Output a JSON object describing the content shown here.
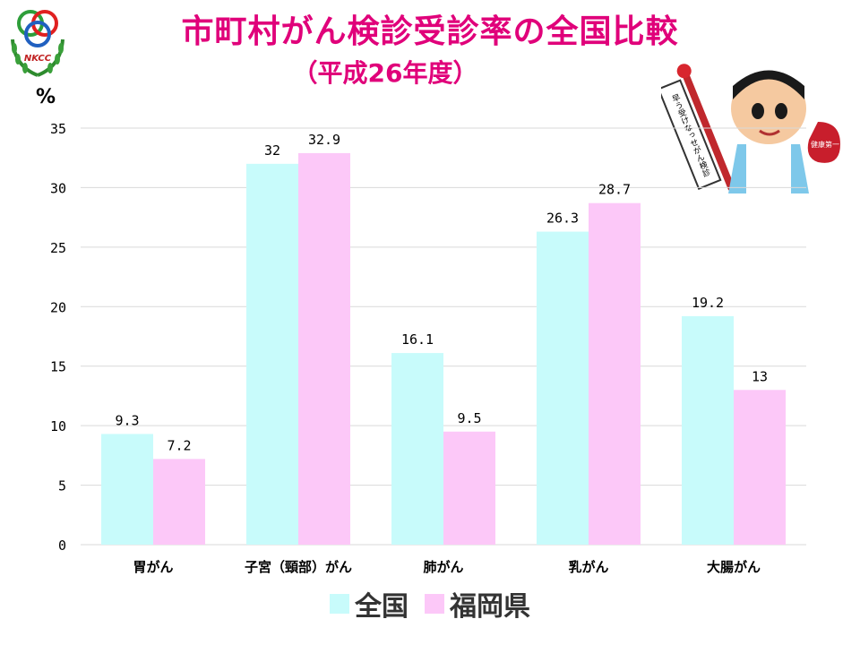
{
  "header": {
    "title": "市町村がん検診受診率の全国比較",
    "subtitle": "（平成26年度）",
    "logo_text": "NKCC"
  },
  "mascot": {
    "banner_text": "早う受けなっせがん検診",
    "badge_text": "健康第一"
  },
  "colors": {
    "title": "#e0007a",
    "national": "#c8fbfb",
    "fukuoka": "#fcc8f8",
    "grid": "#d9d9d9"
  },
  "chart_data": {
    "type": "bar",
    "title": "市町村がん検診受診率の全国比較",
    "subtitle": "（平成26年度）",
    "ylabel": "%",
    "xlabel": "",
    "ylim": [
      0,
      35
    ],
    "yticks": [
      "0",
      "5",
      "10",
      "15",
      "20",
      "25",
      "30",
      "35"
    ],
    "grid": true,
    "legend_position": "bottom",
    "categories": [
      "胃がん",
      "子宮（頸部）がん",
      "肺がん",
      "乳がん",
      "大腸がん"
    ],
    "series": [
      {
        "name": "全国",
        "values": [
          9.3,
          32,
          16.1,
          26.3,
          19.2
        ],
        "labels": [
          "9.3",
          "32",
          "16.1",
          "26.3",
          "19.2"
        ]
      },
      {
        "name": "福岡県",
        "values": [
          7.2,
          32.9,
          9.5,
          28.7,
          13
        ],
        "labels": [
          "7.2",
          "32.9",
          "9.5",
          "28.7",
          "13"
        ]
      }
    ]
  }
}
